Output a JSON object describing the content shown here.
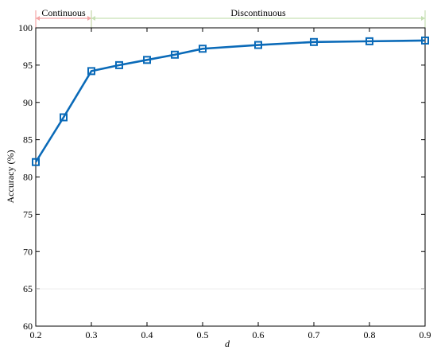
{
  "chart_data": {
    "type": "line",
    "xlabel": "d",
    "ylabel": "Accuracy (%)",
    "xlim": [
      0.2,
      0.9
    ],
    "ylim": [
      60,
      100
    ],
    "xticks": [
      "0.2",
      "0.3",
      "0.4",
      "0.5",
      "0.6",
      "0.7",
      "0.8",
      "0.9"
    ],
    "yticks": [
      "60",
      "65",
      "70",
      "75",
      "80",
      "85",
      "90",
      "95",
      "100"
    ],
    "grid": false,
    "series": [
      {
        "marker": "square",
        "color": "#0a6ab8",
        "x": [
          0.2,
          0.25,
          0.3,
          0.35,
          0.4,
          0.45,
          0.5,
          0.6,
          0.7,
          0.8,
          0.9
        ],
        "y": [
          82.0,
          88.0,
          94.2,
          95.0,
          95.7,
          96.4,
          97.2,
          97.7,
          98.1,
          98.2,
          98.3
        ]
      }
    ],
    "annotations": [
      {
        "text": "Continuous",
        "x_start": 0.2,
        "x_end": 0.3,
        "color": "#f4a6a6"
      },
      {
        "text": "Discontinuous",
        "x_start": 0.3,
        "x_end": 0.9,
        "color": "#c6e0b4"
      }
    ]
  }
}
